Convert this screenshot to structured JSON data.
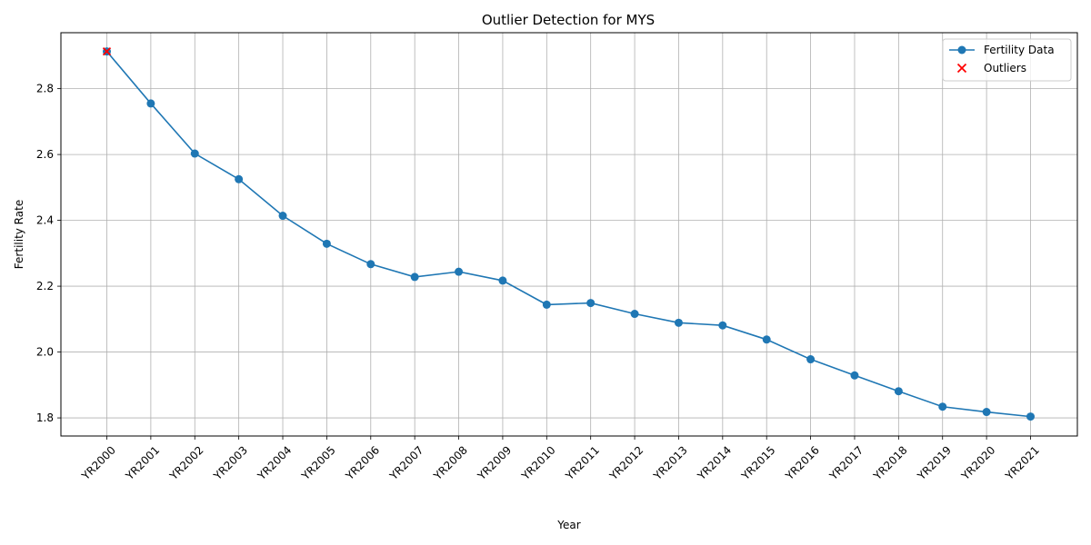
{
  "chart_data": {
    "type": "line",
    "title": "Outlier Detection for MYS",
    "xlabel": "Year",
    "ylabel": "Fertility Rate",
    "categories": [
      "YR2000",
      "YR2001",
      "YR2002",
      "YR2003",
      "YR2004",
      "YR2005",
      "YR2006",
      "YR2007",
      "YR2008",
      "YR2009",
      "YR2010",
      "YR2011",
      "YR2012",
      "YR2013",
      "YR2014",
      "YR2015",
      "YR2016",
      "YR2017",
      "YR2018",
      "YR2019",
      "YR2020",
      "YR2021"
    ],
    "series": [
      {
        "name": "Fertility Data",
        "color": "#1f77b4",
        "values": [
          2.913,
          2.755,
          2.603,
          2.525,
          2.414,
          2.329,
          2.267,
          2.228,
          2.244,
          2.217,
          2.144,
          2.149,
          2.116,
          2.089,
          2.081,
          2.038,
          1.978,
          1.929,
          1.881,
          1.834,
          1.818,
          1.804
        ]
      }
    ],
    "outliers": {
      "name": "Outliers",
      "color": "#ff0000",
      "x": [
        "YR2000"
      ],
      "values": [
        2.913
      ]
    },
    "yticks": [
      1.8,
      2.0,
      2.2,
      2.4,
      2.6,
      2.8
    ],
    "ylim": [
      1.745,
      2.97
    ],
    "grid": true,
    "legend": "top-right"
  }
}
